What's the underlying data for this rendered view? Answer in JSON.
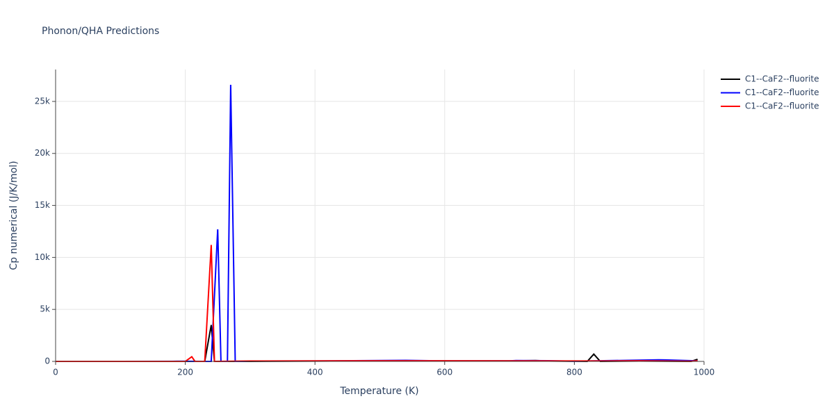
{
  "chart_data": {
    "type": "line",
    "title": "Phonon/QHA Predictions",
    "x_label": "Temperature (K)",
    "y_label": "Cp numerical (J/K/mol)",
    "xlim": [
      0,
      1000
    ],
    "xticks": [
      0,
      200,
      400,
      600,
      800,
      1000
    ],
    "ylim": [
      0,
      28070
    ],
    "yticks": [
      0,
      {
        "value": 5000,
        "label": "5k"
      },
      {
        "value": 10000,
        "label": "10k"
      },
      {
        "value": 15000,
        "label": "15k"
      },
      {
        "value": 20000,
        "label": "20k"
      },
      {
        "value": 25000,
        "label": "25k"
      }
    ],
    "grid": true,
    "legend": "top-right",
    "series": [
      {
        "name": "C1--CaF2--fluorite",
        "color": "#000000",
        "x": [
          0,
          100,
          200,
          230,
          240,
          245,
          250,
          300,
          500,
          700,
          740,
          760,
          820,
          830,
          840,
          900,
          980,
          990
        ],
        "values": [
          0,
          0,
          0,
          0,
          3500,
          0,
          0,
          0,
          50,
          50,
          80,
          30,
          0,
          700,
          0,
          30,
          0,
          200
        ]
      },
      {
        "name": "C1--CaF2--fluorite",
        "color": "#0000ff",
        "x": [
          0,
          100,
          180,
          200,
          230,
          240,
          250,
          255,
          265,
          270,
          277,
          300,
          400,
          540,
          600,
          700,
          710,
          760,
          800,
          930,
          940,
          990
        ],
        "values": [
          0,
          0,
          10,
          20,
          0,
          0,
          12700,
          0,
          0,
          26600,
          0,
          30,
          40,
          100,
          50,
          50,
          80,
          70,
          20,
          150,
          140,
          50
        ]
      },
      {
        "name": "C1--CaF2--fluorite",
        "color": "#ff0000",
        "x": [
          0,
          100,
          200,
          210,
          215,
          230,
          240,
          245,
          300,
          500,
          700,
          850,
          900,
          980,
          990
        ],
        "values": [
          0,
          0,
          0,
          450,
          0,
          0,
          11200,
          0,
          40,
          60,
          50,
          40,
          60,
          20,
          60
        ]
      }
    ]
  }
}
